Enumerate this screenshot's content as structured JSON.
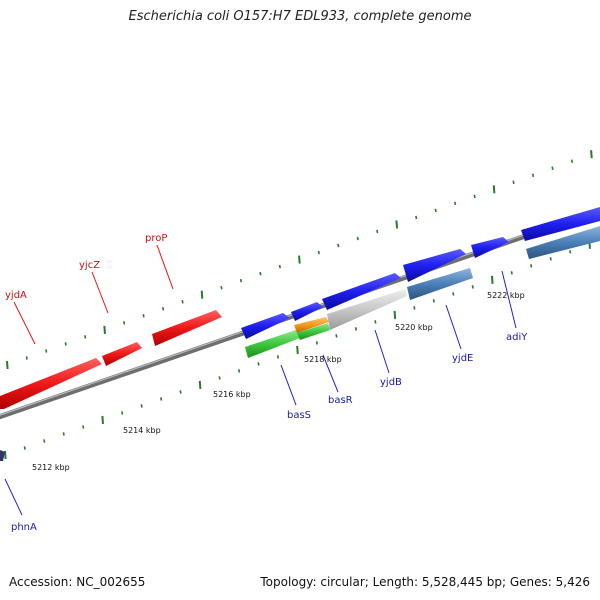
{
  "title": "Escherichia coli O157:H7 EDL933, complete genome",
  "footer": {
    "accession": "Accession: NC_002655",
    "topology": "Topology: circular; Length: 5,528,445 bp; Genes: 5,426"
  },
  "colors": {
    "forward_gene": "#1f1ff0",
    "reverse_gene": "#f02020",
    "light_blue_gene": "#4a7fb8",
    "green_gene": "#3cc83c",
    "orange_gene": "#f39a1a",
    "grey_gene": "#c8c8c8",
    "backbone": "#888888",
    "ticks": "#2a7a2a",
    "forward_label": "#1a1aaa",
    "reverse_label": "#cc1111"
  },
  "scale_labels": [
    "5212 kbp",
    "5214 kbp",
    "5216 kbp",
    "5218 kbp",
    "5220 kbp",
    "5222 kbp"
  ],
  "genes_top": [
    {
      "name": "yjdA",
      "color_key": "reverse_label"
    },
    {
      "name": "yjcZ",
      "color_key": "reverse_label"
    },
    {
      "name": "proP",
      "color_key": "reverse_label"
    }
  ],
  "genes_bottom": [
    {
      "name": "phnA"
    },
    {
      "name": "basS"
    },
    {
      "name": "basR"
    },
    {
      "name": "yjdB"
    },
    {
      "name": "yjdE"
    },
    {
      "name": "adiY"
    }
  ]
}
